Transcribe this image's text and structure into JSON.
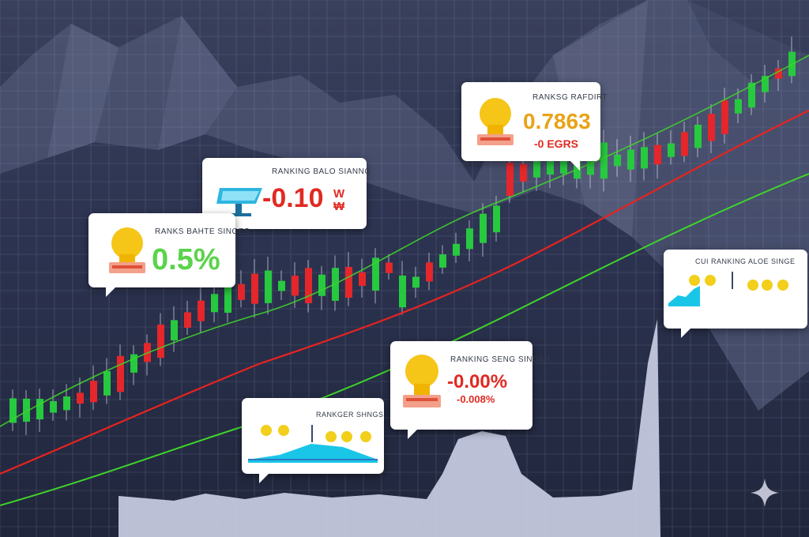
{
  "colors": {
    "background": "#2b3148",
    "grid": "#8f9ab8",
    "bull": "#27c93f",
    "bear": "#e5262a",
    "trend_red": "#e8231f",
    "trend_green": "#3fd42a",
    "card": "#ffffff",
    "value_green": "#5bd34a",
    "value_red": "#e02a22",
    "value_orange": "#e8a317",
    "bulb_yellow": "#f5c518",
    "wave_cyan": "#19c6e8"
  },
  "cards": [
    {
      "id": "card-1",
      "caption": "RANKING BALO SIANNG",
      "value": "-0.10",
      "value_suffix": "W ₩",
      "icon": "monitor-icon"
    },
    {
      "id": "card-2",
      "caption": "RANKS BAHTE SINGES",
      "value": "0.5%",
      "icon": "lightbulb-icon"
    },
    {
      "id": "card-3",
      "caption": "RANKSG RAFDIRT",
      "value": "0.7863",
      "sub_value": "-0 EGRS",
      "icon": "lightbulb-icon"
    },
    {
      "id": "card-4",
      "caption": "RANKING SENG SINGES",
      "value": "-0.00%",
      "sub_value": "-0.008%",
      "icon": "lightbulb-icon"
    },
    {
      "id": "card-5",
      "caption": "CUI RANKING ALOE SINGE",
      "icon": "wave-chart-icon"
    },
    {
      "id": "card-6",
      "caption": "RANKGER SHNGS",
      "icon": "wave-chart-icon"
    }
  ],
  "watermark": {
    "icon": "sparkle-icon"
  }
}
